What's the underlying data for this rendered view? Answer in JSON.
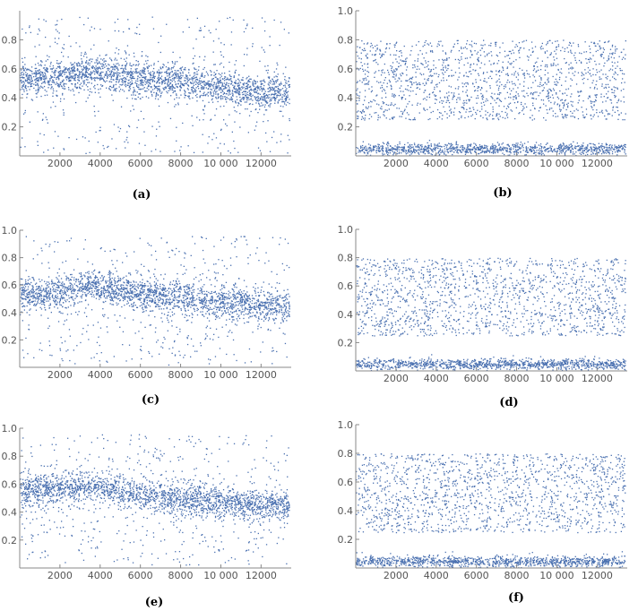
{
  "figure": {
    "point_color": "#4a70b0",
    "axis_color": "#888888",
    "tick_text_color": "#555555",
    "point_count_note": ""
  },
  "chart_data": [
    {
      "panel": "(a)",
      "type": "scatter",
      "xlim": [
        0,
        13500
      ],
      "ylim": [
        0,
        1.0
      ],
      "xticks": [
        2000,
        4000,
        6000,
        8000,
        10000,
        12000
      ],
      "xtick_labels": [
        "2000",
        "4000",
        "6000",
        "8000",
        "10 000",
        "12000"
      ],
      "yticks": [
        0.2,
        0.4,
        0.6,
        0.8
      ],
      "ytick_labels": [
        "0.2",
        "0.4",
        "0.6",
        "0.8"
      ],
      "grid": false,
      "dense_band": [
        [
          0,
          0.53
        ],
        [
          2000,
          0.55
        ],
        [
          3500,
          0.58
        ],
        [
          5000,
          0.55
        ],
        [
          6000,
          0.53
        ],
        [
          8000,
          0.52
        ],
        [
          10000,
          0.47
        ],
        [
          12000,
          0.45
        ],
        [
          13400,
          0.44
        ]
      ],
      "band_spread": 0.06,
      "scattered_range": [
        0.02,
        0.96
      ]
    },
    {
      "panel": "(b)",
      "type": "scatter",
      "xlim": [
        0,
        13500
      ],
      "ylim": [
        0,
        1.0
      ],
      "xticks": [
        2000,
        4000,
        6000,
        8000,
        10000,
        12000
      ],
      "xtick_labels": [
        "2000",
        "4000",
        "6000",
        "8000",
        "10 000",
        "12000"
      ],
      "yticks": [
        0.2,
        0.4,
        0.6,
        0.8,
        1.0
      ],
      "ytick_labels": [
        "0.2",
        "0.4",
        "0.6",
        "0.8",
        "1.0"
      ],
      "grid": false,
      "dense_band": [
        [
          0,
          0.05
        ],
        [
          13400,
          0.05
        ]
      ],
      "band_spread": 0.02,
      "scattered_range": [
        0.25,
        0.8
      ]
    },
    {
      "panel": "(c)",
      "type": "scatter",
      "xlim": [
        0,
        13500
      ],
      "ylim": [
        0,
        1.0
      ],
      "xticks": [
        2000,
        4000,
        6000,
        8000,
        10000,
        12000
      ],
      "xtick_labels": [
        "2000",
        "4000",
        "6000",
        "8000",
        "10 000",
        "12000"
      ],
      "yticks": [
        0.2,
        0.4,
        0.6,
        0.8,
        1.0
      ],
      "ytick_labels": [
        "0.2",
        "0.4",
        "0.6",
        "0.8",
        "1.0"
      ],
      "grid": false,
      "dense_band": [
        [
          0,
          0.52
        ],
        [
          2000,
          0.55
        ],
        [
          3500,
          0.6
        ],
        [
          5000,
          0.56
        ],
        [
          6000,
          0.54
        ],
        [
          8000,
          0.52
        ],
        [
          10000,
          0.48
        ],
        [
          12000,
          0.46
        ],
        [
          13400,
          0.45
        ]
      ],
      "band_spread": 0.06,
      "scattered_range": [
        0.02,
        0.96
      ]
    },
    {
      "panel": "(d)",
      "type": "scatter",
      "xlim": [
        0,
        13500
      ],
      "ylim": [
        0,
        1.0
      ],
      "xticks": [
        2000,
        4000,
        6000,
        8000,
        10000,
        12000
      ],
      "xtick_labels": [
        "2000",
        "4000",
        "6000",
        "8000",
        "10 000",
        "12000"
      ],
      "yticks": [
        0.2,
        0.4,
        0.6,
        0.8,
        1.0
      ],
      "ytick_labels": [
        "0.2",
        "0.4",
        "0.6",
        "0.8",
        "1.0"
      ],
      "grid": false,
      "dense_band": [
        [
          0,
          0.05
        ],
        [
          13400,
          0.05
        ]
      ],
      "band_spread": 0.02,
      "scattered_range": [
        0.25,
        0.8
      ]
    },
    {
      "panel": "(e)",
      "type": "scatter",
      "xlim": [
        0,
        13500
      ],
      "ylim": [
        0,
        1.0
      ],
      "xticks": [
        2000,
        4000,
        6000,
        8000,
        10000,
        12000
      ],
      "xtick_labels": [
        "2000",
        "4000",
        "6000",
        "8000",
        "10 000",
        "12000"
      ],
      "yticks": [
        0.2,
        0.4,
        0.6,
        0.8,
        1.0
      ],
      "ytick_labels": [
        "0.2",
        "0.4",
        "0.6",
        "0.8",
        "1.0"
      ],
      "grid": false,
      "dense_band": [
        [
          0,
          0.55
        ],
        [
          2000,
          0.57
        ],
        [
          3500,
          0.58
        ],
        [
          5000,
          0.55
        ],
        [
          6000,
          0.52
        ],
        [
          8000,
          0.5
        ],
        [
          10000,
          0.47
        ],
        [
          12000,
          0.45
        ],
        [
          13400,
          0.44
        ]
      ],
      "band_spread": 0.06,
      "scattered_range": [
        0.02,
        0.96
      ]
    },
    {
      "panel": "(f)",
      "type": "scatter",
      "xlim": [
        0,
        13500
      ],
      "ylim": [
        0,
        1.0
      ],
      "xticks": [
        2000,
        4000,
        6000,
        8000,
        10000,
        12000
      ],
      "xtick_labels": [
        "2000",
        "4000",
        "6000",
        "8000",
        "10 000",
        "12000"
      ],
      "yticks": [
        0.2,
        0.4,
        0.6,
        0.8,
        1.0
      ],
      "ytick_labels": [
        "0.2",
        "0.4",
        "0.6",
        "0.8",
        "1.0"
      ],
      "grid": false,
      "dense_band": [
        [
          0,
          0.05
        ],
        [
          13400,
          0.05
        ]
      ],
      "band_spread": 0.02,
      "scattered_range": [
        0.25,
        0.8
      ]
    }
  ]
}
